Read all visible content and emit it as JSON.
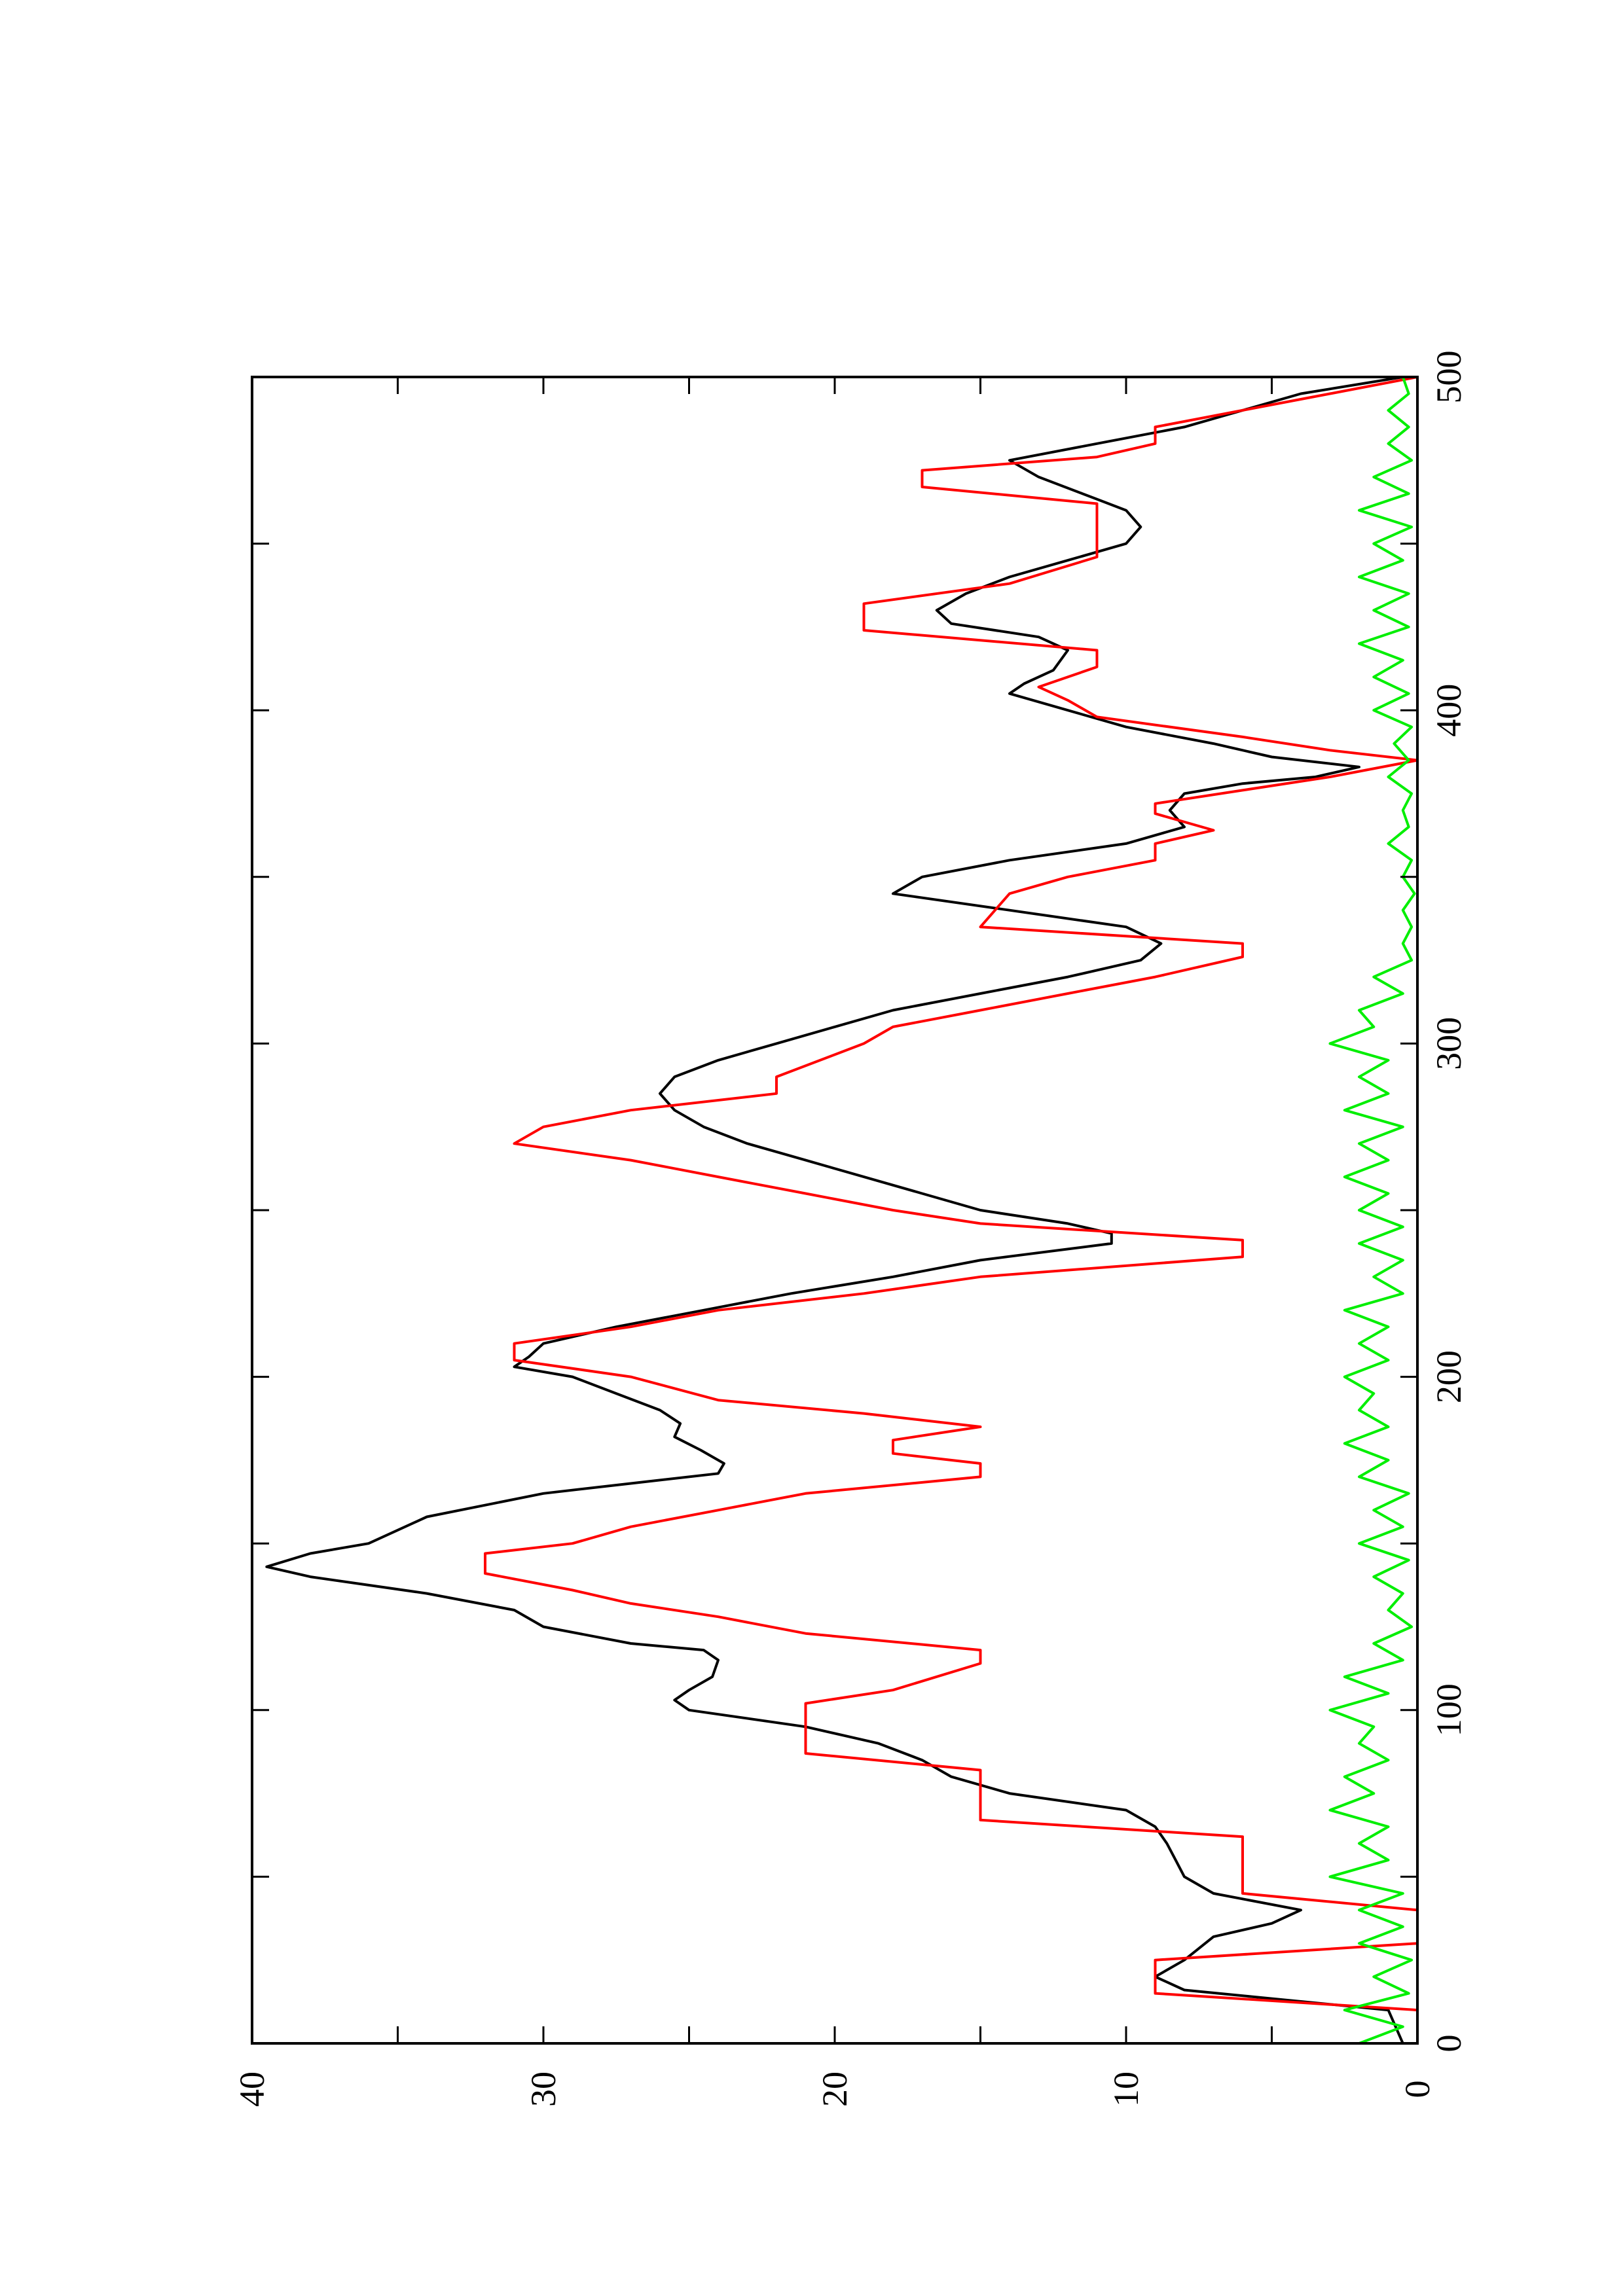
{
  "chart_data": {
    "type": "line",
    "orientation": "rotated-90-ccw",
    "title": "",
    "xlabel": "",
    "ylabel": "",
    "xlim": [
      0,
      500
    ],
    "ylim": [
      0,
      40
    ],
    "x_ticks": [
      0,
      100,
      200,
      300,
      400,
      500
    ],
    "y_ticks": [
      0,
      10,
      20,
      30,
      40
    ],
    "grid": false,
    "legend": "none",
    "series": [
      {
        "color": "#000000",
        "points": [
          [
            0,
            0.5
          ],
          [
            10,
            1
          ],
          [
            16,
            8
          ],
          [
            20,
            9
          ],
          [
            25,
            8
          ],
          [
            32,
            7
          ],
          [
            36,
            5
          ],
          [
            40,
            4
          ],
          [
            45,
            7
          ],
          [
            50,
            8
          ],
          [
            55,
            8.3
          ],
          [
            60,
            8.6
          ],
          [
            65,
            9
          ],
          [
            70,
            10
          ],
          [
            75,
            14
          ],
          [
            80,
            16
          ],
          [
            85,
            17
          ],
          [
            90,
            18.5
          ],
          [
            95,
            21
          ],
          [
            100,
            25
          ],
          [
            103,
            25.5
          ],
          [
            106,
            25
          ],
          [
            110,
            24.2
          ],
          [
            115,
            24
          ],
          [
            118,
            24.5
          ],
          [
            120,
            27
          ],
          [
            125,
            30
          ],
          [
            130,
            31
          ],
          [
            135,
            34
          ],
          [
            140,
            38
          ],
          [
            143,
            39.5
          ],
          [
            147,
            38
          ],
          [
            150,
            36
          ],
          [
            158,
            34
          ],
          [
            165,
            30
          ],
          [
            168,
            27
          ],
          [
            171,
            24
          ],
          [
            174,
            23.8
          ],
          [
            178,
            24.6
          ],
          [
            182,
            25.5
          ],
          [
            186,
            25.3
          ],
          [
            190,
            26
          ],
          [
            195,
            27.5
          ],
          [
            200,
            29
          ],
          [
            203,
            31
          ],
          [
            206,
            30.5
          ],
          [
            210,
            30
          ],
          [
            215,
            27.5
          ],
          [
            220,
            24.5
          ],
          [
            225,
            21.5
          ],
          [
            230,
            18
          ],
          [
            235,
            15
          ],
          [
            240,
            10.5
          ],
          [
            243,
            10.5
          ],
          [
            246,
            12
          ],
          [
            250,
            15
          ],
          [
            255,
            17
          ],
          [
            260,
            19
          ],
          [
            265,
            21
          ],
          [
            270,
            23
          ],
          [
            275,
            24.5
          ],
          [
            280,
            25.5
          ],
          [
            285,
            26
          ],
          [
            290,
            25.5
          ],
          [
            295,
            24
          ],
          [
            300,
            22
          ],
          [
            305,
            20
          ],
          [
            310,
            18
          ],
          [
            315,
            15
          ],
          [
            320,
            12
          ],
          [
            325,
            9.5
          ],
          [
            330,
            8.8
          ],
          [
            335,
            10
          ],
          [
            340,
            14
          ],
          [
            345,
            18
          ],
          [
            350,
            17
          ],
          [
            355,
            14
          ],
          [
            360,
            10
          ],
          [
            365,
            8
          ],
          [
            370,
            8.5
          ],
          [
            375,
            8
          ],
          [
            378,
            6
          ],
          [
            380,
            3.5
          ],
          [
            383,
            2
          ],
          [
            386,
            5
          ],
          [
            390,
            7
          ],
          [
            395,
            10
          ],
          [
            400,
            12
          ],
          [
            405,
            14
          ],
          [
            408,
            13.5
          ],
          [
            412,
            12.5
          ],
          [
            418,
            12
          ],
          [
            422,
            13
          ],
          [
            426,
            16
          ],
          [
            430,
            16.5
          ],
          [
            435,
            15.5
          ],
          [
            440,
            14
          ],
          [
            445,
            12
          ],
          [
            450,
            10
          ],
          [
            455,
            9.5
          ],
          [
            460,
            10
          ],
          [
            465,
            11.5
          ],
          [
            470,
            13
          ],
          [
            475,
            14
          ],
          [
            480,
            11
          ],
          [
            485,
            8
          ],
          [
            490,
            6
          ],
          [
            495,
            4
          ],
          [
            500,
            0.5
          ]
        ]
      },
      {
        "color": "#ff0000",
        "points": [
          [
            0,
            0
          ],
          [
            10,
            0
          ],
          [
            15,
            9
          ],
          [
            22,
            9
          ],
          [
            25,
            9
          ],
          [
            30,
            0
          ],
          [
            35,
            0
          ],
          [
            40,
            0
          ],
          [
            45,
            6
          ],
          [
            62,
            6
          ],
          [
            67,
            15
          ],
          [
            82,
            15
          ],
          [
            87,
            21
          ],
          [
            102,
            21
          ],
          [
            106,
            18
          ],
          [
            114,
            15
          ],
          [
            118,
            15
          ],
          [
            123,
            21
          ],
          [
            128,
            24
          ],
          [
            132,
            27
          ],
          [
            136,
            29
          ],
          [
            141,
            32
          ],
          [
            147,
            32
          ],
          [
            150,
            29
          ],
          [
            155,
            27
          ],
          [
            160,
            24
          ],
          [
            165,
            21
          ],
          [
            170,
            15
          ],
          [
            174,
            15
          ],
          [
            177,
            18
          ],
          [
            181,
            18
          ],
          [
            185,
            15
          ],
          [
            189,
            19
          ],
          [
            193,
            24
          ],
          [
            200,
            27
          ],
          [
            205,
            31
          ],
          [
            210,
            31
          ],
          [
            215,
            27
          ],
          [
            220,
            24
          ],
          [
            225,
            19
          ],
          [
            230,
            15
          ],
          [
            236,
            6
          ],
          [
            241,
            6
          ],
          [
            246,
            15
          ],
          [
            250,
            18
          ],
          [
            255,
            21
          ],
          [
            260,
            24
          ],
          [
            265,
            27
          ],
          [
            270,
            31
          ],
          [
            275,
            30
          ],
          [
            280,
            27
          ],
          [
            285,
            22
          ],
          [
            290,
            22
          ],
          [
            300,
            19
          ],
          [
            305,
            18
          ],
          [
            310,
            15
          ],
          [
            315,
            12
          ],
          [
            320,
            9
          ],
          [
            326,
            6
          ],
          [
            330,
            6
          ],
          [
            335,
            15
          ],
          [
            340,
            14.5
          ],
          [
            345,
            14
          ],
          [
            350,
            12
          ],
          [
            355,
            9
          ],
          [
            360,
            9
          ],
          [
            364,
            7
          ],
          [
            369,
            9
          ],
          [
            372,
            9
          ],
          [
            376,
            6
          ],
          [
            380,
            3
          ],
          [
            385,
            0
          ],
          [
            388,
            3
          ],
          [
            392,
            6
          ],
          [
            398,
            11
          ],
          [
            403,
            12
          ],
          [
            407,
            13
          ],
          [
            413,
            11
          ],
          [
            418,
            11
          ],
          [
            424,
            19
          ],
          [
            432,
            19
          ],
          [
            438,
            14
          ],
          [
            446,
            11
          ],
          [
            462,
            11
          ],
          [
            467,
            17
          ],
          [
            472,
            17
          ],
          [
            476,
            11
          ],
          [
            480,
            9
          ],
          [
            485,
            9
          ],
          [
            490,
            6
          ],
          [
            495,
            3
          ],
          [
            500,
            0
          ]
        ]
      },
      {
        "color": "#00ee00",
        "points": [
          [
            0,
            2
          ],
          [
            5,
            0.5
          ],
          [
            10,
            2.5
          ],
          [
            15,
            0.3
          ],
          [
            20,
            1.5
          ],
          [
            25,
            0.2
          ],
          [
            30,
            2
          ],
          [
            35,
            0.5
          ],
          [
            40,
            2
          ],
          [
            45,
            0.5
          ],
          [
            50,
            3
          ],
          [
            55,
            1
          ],
          [
            60,
            2
          ],
          [
            65,
            1
          ],
          [
            70,
            3
          ],
          [
            75,
            1.5
          ],
          [
            80,
            2.5
          ],
          [
            85,
            1
          ],
          [
            90,
            2
          ],
          [
            95,
            1.5
          ],
          [
            100,
            3
          ],
          [
            105,
            1
          ],
          [
            110,
            2.5
          ],
          [
            115,
            0.5
          ],
          [
            120,
            1.5
          ],
          [
            125,
            0.2
          ],
          [
            130,
            1
          ],
          [
            135,
            0.5
          ],
          [
            140,
            1.5
          ],
          [
            145,
            0.3
          ],
          [
            150,
            2
          ],
          [
            155,
            0.5
          ],
          [
            160,
            1.5
          ],
          [
            165,
            0.3
          ],
          [
            170,
            2
          ],
          [
            175,
            1
          ],
          [
            180,
            2.5
          ],
          [
            185,
            1
          ],
          [
            190,
            2
          ],
          [
            195,
            1.5
          ],
          [
            200,
            2.5
          ],
          [
            205,
            1
          ],
          [
            210,
            2
          ],
          [
            215,
            1
          ],
          [
            220,
            2.5
          ],
          [
            225,
            0.5
          ],
          [
            230,
            1.5
          ],
          [
            235,
            0.5
          ],
          [
            240,
            2
          ],
          [
            245,
            0.5
          ],
          [
            250,
            2
          ],
          [
            255,
            1
          ],
          [
            260,
            2.5
          ],
          [
            265,
            1
          ],
          [
            270,
            2
          ],
          [
            275,
            0.5
          ],
          [
            280,
            2.5
          ],
          [
            285,
            1
          ],
          [
            290,
            2
          ],
          [
            295,
            1
          ],
          [
            300,
            3
          ],
          [
            305,
            1.5
          ],
          [
            310,
            2
          ],
          [
            315,
            0.5
          ],
          [
            320,
            1.5
          ],
          [
            325,
            0.2
          ],
          [
            330,
            0.5
          ],
          [
            335,
            0.2
          ],
          [
            340,
            0.5
          ],
          [
            345,
            0.1
          ],
          [
            350,
            0.5
          ],
          [
            355,
            0.2
          ],
          [
            360,
            1
          ],
          [
            365,
            0.3
          ],
          [
            370,
            0.5
          ],
          [
            375,
            0.2
          ],
          [
            380,
            1
          ],
          [
            385,
            0.3
          ],
          [
            390,
            0.8
          ],
          [
            395,
            0.2
          ],
          [
            400,
            1.5
          ],
          [
            405,
            0.3
          ],
          [
            410,
            1.5
          ],
          [
            415,
            0.5
          ],
          [
            420,
            2
          ],
          [
            425,
            0.3
          ],
          [
            430,
            1.5
          ],
          [
            435,
            0.3
          ],
          [
            440,
            2
          ],
          [
            445,
            0.5
          ],
          [
            450,
            1.5
          ],
          [
            455,
            0.2
          ],
          [
            460,
            2
          ],
          [
            465,
            0.3
          ],
          [
            470,
            1.5
          ],
          [
            475,
            0.2
          ],
          [
            480,
            1
          ],
          [
            485,
            0.3
          ],
          [
            490,
            1
          ],
          [
            495,
            0.3
          ],
          [
            500,
            0.5
          ]
        ]
      }
    ]
  }
}
